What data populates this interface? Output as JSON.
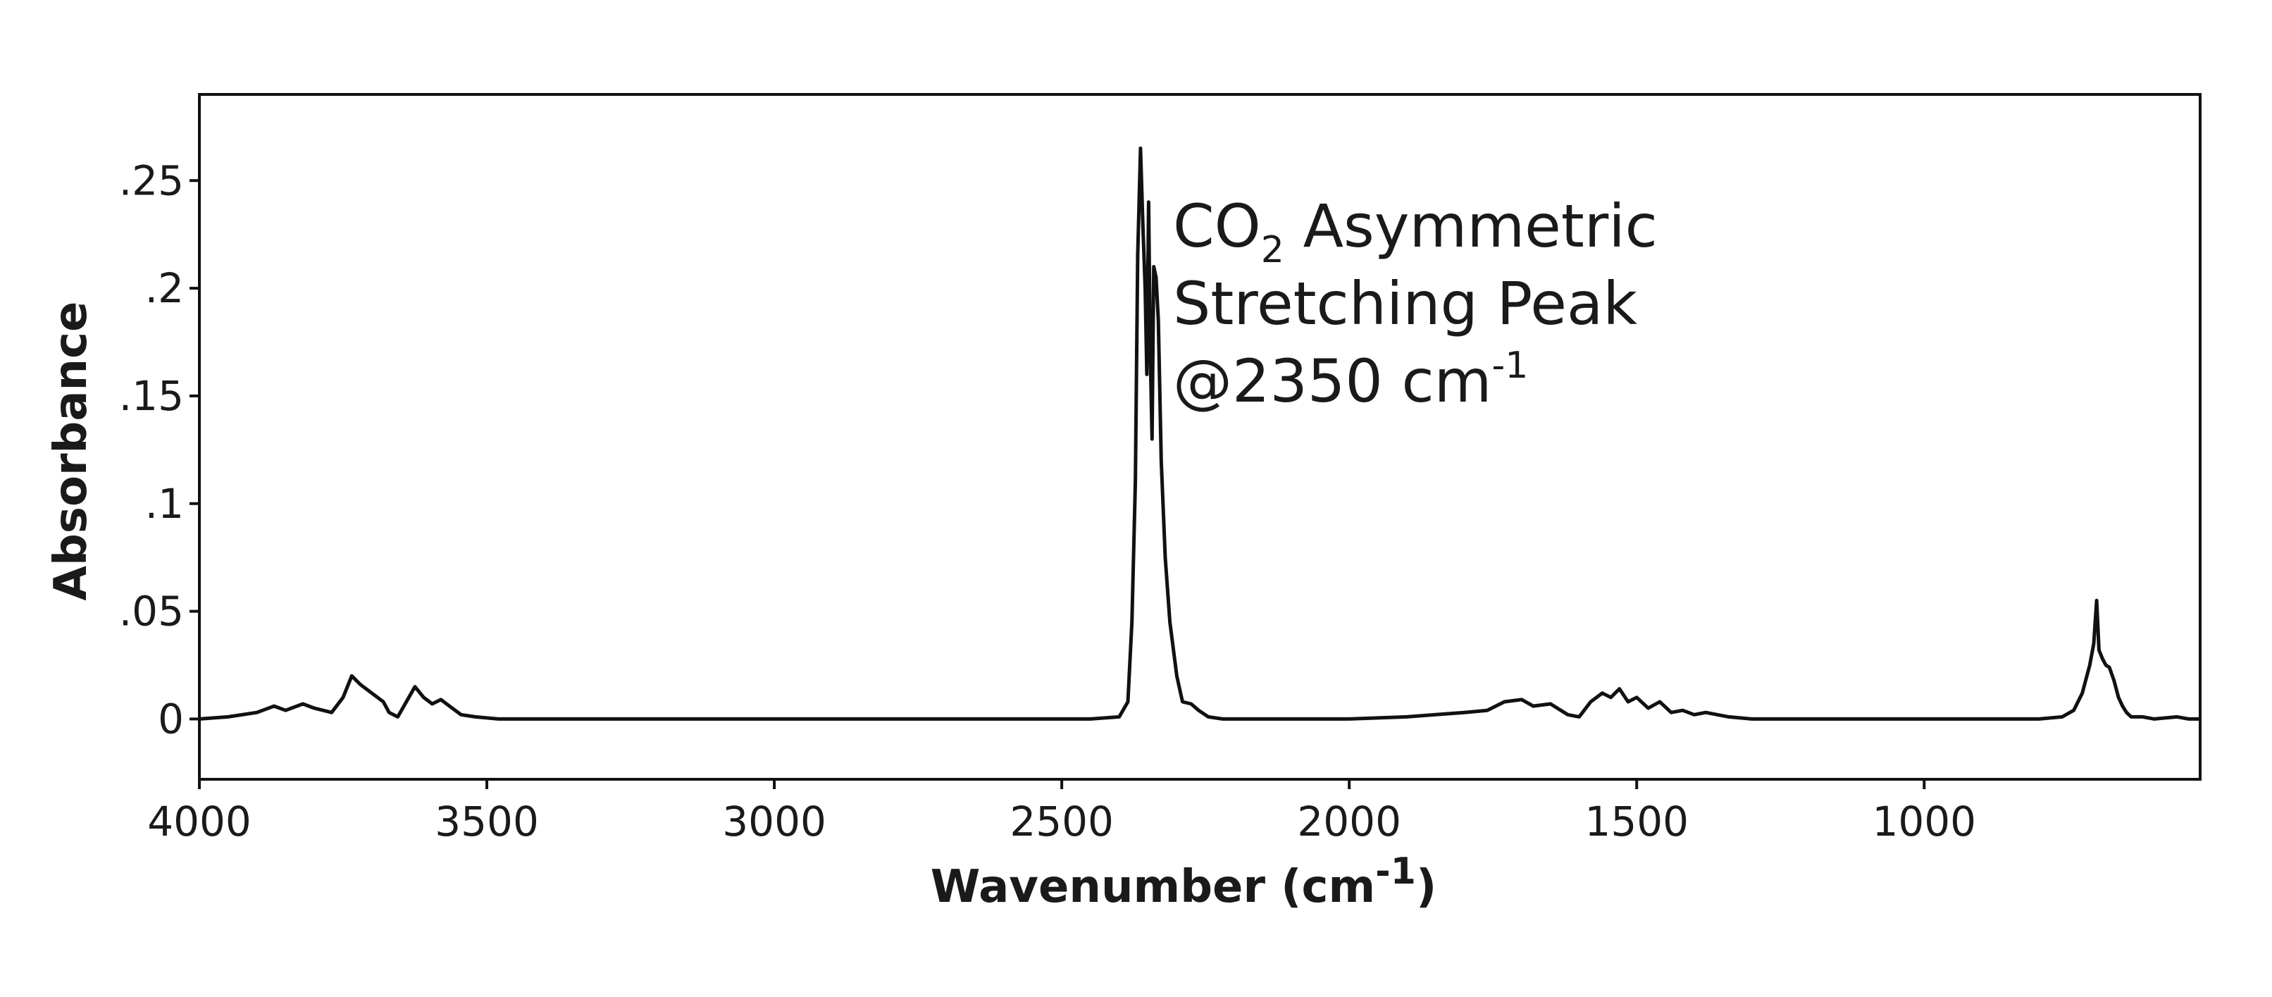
{
  "chart_data": {
    "type": "line",
    "xlabel": "Wavenumber",
    "xlabel_unit_base": "cm",
    "xlabel_unit_sup": "-1",
    "ylabel": "Absorbance",
    "xlim": [
      4000,
      520
    ],
    "ylim": [
      -0.028,
      0.29
    ],
    "x_reversed": true,
    "grid": false,
    "x_ticks": [
      4000,
      3500,
      3000,
      2500,
      2000,
      1500,
      1000
    ],
    "x_tick_labels": [
      "4000",
      "3500",
      "3000",
      "2500",
      "2000",
      "1500",
      "1000"
    ],
    "y_ticks": [
      0,
      0.05,
      0.1,
      0.15,
      0.2,
      0.25
    ],
    "y_tick_labels": [
      "0",
      ".05",
      ".1",
      ".15",
      ".2",
      ".25"
    ],
    "annotation": {
      "line1_prefix": "CO",
      "line1_sub": "2",
      "line1_suffix": " Asymmetric",
      "line2": "Stretching Peak",
      "line3_prefix": "@2350 cm",
      "line3_sup": "-1"
    },
    "series": [
      {
        "color": "#111111",
        "points": [
          [
            4000,
            0.0
          ],
          [
            3950,
            0.001
          ],
          [
            3900,
            0.003
          ],
          [
            3870,
            0.006
          ],
          [
            3850,
            0.004
          ],
          [
            3820,
            0.007
          ],
          [
            3800,
            0.005
          ],
          [
            3770,
            0.003
          ],
          [
            3750,
            0.01
          ],
          [
            3735,
            0.02
          ],
          [
            3720,
            0.016
          ],
          [
            3700,
            0.012
          ],
          [
            3680,
            0.008
          ],
          [
            3670,
            0.003
          ],
          [
            3655,
            0.001
          ],
          [
            3640,
            0.008
          ],
          [
            3625,
            0.015
          ],
          [
            3610,
            0.01
          ],
          [
            3595,
            0.007
          ],
          [
            3580,
            0.009
          ],
          [
            3565,
            0.006
          ],
          [
            3545,
            0.002
          ],
          [
            3520,
            0.001
          ],
          [
            3480,
            0.0
          ],
          [
            3400,
            0.0
          ],
          [
            3300,
            0.0
          ],
          [
            3000,
            0.0
          ],
          [
            2700,
            0.0
          ],
          [
            2450,
            0.0
          ],
          [
            2400,
            0.001
          ],
          [
            2385,
            0.008
          ],
          [
            2378,
            0.045
          ],
          [
            2372,
            0.11
          ],
          [
            2368,
            0.215
          ],
          [
            2363,
            0.265
          ],
          [
            2359,
            0.23
          ],
          [
            2355,
            0.2
          ],
          [
            2352,
            0.16
          ],
          [
            2349,
            0.24
          ],
          [
            2346,
            0.17
          ],
          [
            2343,
            0.13
          ],
          [
            2340,
            0.21
          ],
          [
            2336,
            0.205
          ],
          [
            2332,
            0.185
          ],
          [
            2327,
            0.12
          ],
          [
            2320,
            0.075
          ],
          [
            2312,
            0.045
          ],
          [
            2300,
            0.02
          ],
          [
            2290,
            0.008
          ],
          [
            2275,
            0.007
          ],
          [
            2262,
            0.004
          ],
          [
            2245,
            0.001
          ],
          [
            2220,
            0.0
          ],
          [
            2100,
            0.0
          ],
          [
            2000,
            0.0
          ],
          [
            1900,
            0.001
          ],
          [
            1850,
            0.002
          ],
          [
            1800,
            0.003
          ],
          [
            1760,
            0.004
          ],
          [
            1730,
            0.008
          ],
          [
            1700,
            0.009
          ],
          [
            1680,
            0.006
          ],
          [
            1650,
            0.007
          ],
          [
            1620,
            0.002
          ],
          [
            1600,
            0.001
          ],
          [
            1580,
            0.008
          ],
          [
            1560,
            0.012
          ],
          [
            1545,
            0.01
          ],
          [
            1530,
            0.014
          ],
          [
            1515,
            0.008
          ],
          [
            1500,
            0.01
          ],
          [
            1480,
            0.005
          ],
          [
            1460,
            0.008
          ],
          [
            1440,
            0.003
          ],
          [
            1420,
            0.004
          ],
          [
            1400,
            0.002
          ],
          [
            1380,
            0.003
          ],
          [
            1340,
            0.001
          ],
          [
            1300,
            0.0
          ],
          [
            1200,
            0.0
          ],
          [
            1000,
            0.0
          ],
          [
            900,
            0.0
          ],
          [
            800,
            0.0
          ],
          [
            760,
            0.001
          ],
          [
            740,
            0.004
          ],
          [
            725,
            0.012
          ],
          [
            712,
            0.025
          ],
          [
            705,
            0.035
          ],
          [
            700,
            0.055
          ],
          [
            696,
            0.032
          ],
          [
            690,
            0.028
          ],
          [
            684,
            0.025
          ],
          [
            678,
            0.024
          ],
          [
            670,
            0.018
          ],
          [
            662,
            0.01
          ],
          [
            655,
            0.006
          ],
          [
            648,
            0.003
          ],
          [
            640,
            0.001
          ],
          [
            620,
            0.001
          ],
          [
            600,
            0.0
          ],
          [
            560,
            0.001
          ],
          [
            540,
            0.0
          ],
          [
            520,
            0.0
          ]
        ]
      }
    ]
  }
}
